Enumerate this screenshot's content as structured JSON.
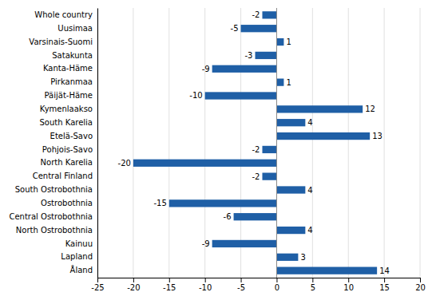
{
  "chart_data": {
    "type": "bar",
    "orientation": "horizontal",
    "categories": [
      "Whole country",
      "Uusimaa",
      "Varsinais-Suomi",
      "Satakunta",
      "Kanta-Häme",
      "Pirkanmaa",
      "Päijät-Häme",
      "Kymenlaakso",
      "South Karelia",
      "Etelä-Savo",
      "Pohjois-Savo",
      "North Karelia",
      "Central Finland",
      "South Ostrobothnia",
      "Ostrobothnia",
      "Central Ostrobothnia",
      "North Ostrobothnia",
      "Kainuu",
      "Lapland",
      "Åland"
    ],
    "values": [
      -2,
      -5,
      1,
      -3,
      -9,
      1,
      -10,
      12,
      4,
      13,
      -2,
      -20,
      -2,
      4,
      -15,
      -6,
      4,
      -9,
      3,
      14
    ],
    "color": "#1F5FA6",
    "xlim": [
      -25,
      20
    ],
    "xticks": [
      -25,
      -20,
      -15,
      -10,
      -5,
      0,
      5,
      10,
      15,
      20
    ],
    "grid": true,
    "data_labels": true
  }
}
